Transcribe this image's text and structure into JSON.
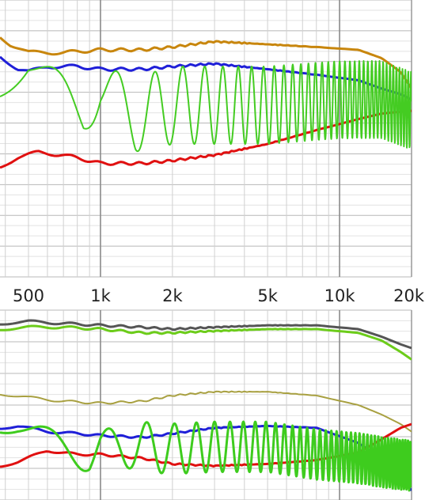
{
  "chart_data": [
    {
      "type": "line",
      "title": "",
      "xlabel": "",
      "ylabel": "",
      "xscale": "log",
      "xlim": [
        380,
        20000
      ],
      "ylim": [
        0,
        100
      ],
      "grid": true,
      "x_ticks": [
        {
          "value": 500,
          "label": "500"
        },
        {
          "value": 1000,
          "label": "1k"
        },
        {
          "value": 2000,
          "label": "2k"
        },
        {
          "value": 5000,
          "label": "5k"
        },
        {
          "value": 10000,
          "label": "10k"
        },
        {
          "value": 20000,
          "label": "20k"
        }
      ],
      "series": [
        {
          "color": "#c8860d",
          "width": 3,
          "points": [
            [
              380,
              87
            ],
            [
              420,
              84
            ],
            [
              500,
              81
            ],
            [
              700,
              81
            ],
            [
              1000,
              82
            ],
            [
              1500,
              82
            ],
            [
              2000,
              83
            ],
            [
              3000,
              85
            ],
            [
              5000,
              84
            ],
            [
              8000,
              83
            ],
            [
              12000,
              82
            ],
            [
              15000,
              79
            ],
            [
              18000,
              74
            ],
            [
              20000,
              68
            ]
          ]
        },
        {
          "color": "#1f1fd8",
          "width": 3,
          "points": [
            [
              380,
              80
            ],
            [
              450,
              75
            ],
            [
              500,
              74
            ],
            [
              600,
              76
            ],
            [
              800,
              76
            ],
            [
              1000,
              75
            ],
            [
              1500,
              75
            ],
            [
              2000,
              76
            ],
            [
              3000,
              77
            ],
            [
              5000,
              75
            ],
            [
              8000,
              73
            ],
            [
              12000,
              71
            ],
            [
              15000,
              68
            ],
            [
              18000,
              66
            ],
            [
              20000,
              64
            ]
          ]
        },
        {
          "color": "#e01010",
          "width": 3,
          "points": [
            [
              380,
              40
            ],
            [
              450,
              43
            ],
            [
              550,
              45
            ],
            [
              700,
              44
            ],
            [
              900,
              42
            ],
            [
              1000,
              41
            ],
            [
              1500,
              41
            ],
            [
              2000,
              42
            ],
            [
              3000,
              44
            ],
            [
              5000,
              48
            ],
            [
              8000,
              53
            ],
            [
              12000,
              57
            ],
            [
              15000,
              59
            ],
            [
              20000,
              60
            ]
          ]
        },
        {
          "color": "#44cc22",
          "width": 2,
          "oscillating": true,
          "points": [
            [
              380,
              70
            ],
            [
              500,
              76
            ],
            [
              850,
              60
            ],
            [
              1000,
              68
            ],
            [
              1400,
              58
            ],
            [
              2000,
              62
            ],
            [
              5000,
              62
            ],
            [
              10000,
              64
            ],
            [
              15000,
              64
            ],
            [
              20000,
              60
            ]
          ]
        }
      ]
    },
    {
      "type": "line",
      "title": "",
      "xlabel": "",
      "ylabel": "",
      "xscale": "log",
      "xlim": [
        380,
        20000
      ],
      "ylim": [
        0,
        100
      ],
      "grid": true,
      "series": [
        {
          "color": "#555555",
          "width": 3,
          "points": [
            [
              380,
              93
            ],
            [
              500,
              94
            ],
            [
              700,
              93
            ],
            [
              1000,
              92
            ],
            [
              1500,
              91
            ],
            [
              2000,
              90
            ],
            [
              3000,
              91
            ],
            [
              5000,
              92
            ],
            [
              8000,
              92
            ],
            [
              12000,
              90
            ],
            [
              15000,
              86
            ],
            [
              18000,
              82
            ],
            [
              20000,
              80
            ]
          ]
        },
        {
          "color": "#6ccc1a",
          "width": 3,
          "points": [
            [
              380,
              90
            ],
            [
              500,
              91
            ],
            [
              700,
              91
            ],
            [
              1000,
              90
            ],
            [
              1500,
              88
            ],
            [
              2000,
              88
            ],
            [
              3000,
              89
            ],
            [
              5000,
              90
            ],
            [
              8000,
              90
            ],
            [
              12000,
              88
            ],
            [
              15000,
              84
            ],
            [
              18000,
              78
            ],
            [
              20000,
              74
            ]
          ]
        },
        {
          "color": "#a8a040",
          "width": 2,
          "points": [
            [
              380,
              56
            ],
            [
              500,
              54
            ],
            [
              700,
              52
            ],
            [
              1000,
              51
            ],
            [
              1500,
              52
            ],
            [
              2000,
              55
            ],
            [
              3000,
              57
            ],
            [
              5000,
              57
            ],
            [
              8000,
              55
            ],
            [
              12000,
              50
            ],
            [
              15000,
              45
            ],
            [
              18000,
              40
            ],
            [
              20000,
              36
            ]
          ]
        },
        {
          "color": "#1f1fd8",
          "width": 3,
          "points": [
            [
              380,
              38
            ],
            [
              450,
              39
            ],
            [
              600,
              36
            ],
            [
              800,
              35
            ],
            [
              1000,
              34
            ],
            [
              1500,
              33
            ],
            [
              2000,
              35
            ],
            [
              3000,
              38
            ],
            [
              5000,
              39
            ],
            [
              8000,
              38
            ],
            [
              12000,
              30
            ],
            [
              15000,
              22
            ],
            [
              18000,
              12
            ],
            [
              20000,
              5
            ]
          ]
        },
        {
          "color": "#e01010",
          "width": 3,
          "points": [
            [
              380,
              18
            ],
            [
              450,
              20
            ],
            [
              600,
              26
            ],
            [
              800,
              24
            ],
            [
              1000,
              24
            ],
            [
              1500,
              22
            ],
            [
              2000,
              19
            ],
            [
              3000,
              18
            ],
            [
              5000,
              19
            ],
            [
              8000,
              21
            ],
            [
              12000,
              25
            ],
            [
              15000,
              32
            ],
            [
              18000,
              38
            ],
            [
              20000,
              40
            ]
          ]
        },
        {
          "color": "#3ecc1e",
          "width": 3,
          "oscillating": true,
          "points": [
            [
              380,
              40
            ],
            [
              450,
              38
            ],
            [
              550,
              34
            ],
            [
              900,
              22
            ],
            [
              1000,
              28
            ],
            [
              1500,
              28
            ],
            [
              2000,
              27
            ],
            [
              3000,
              28
            ],
            [
              5000,
              28
            ],
            [
              8000,
              24
            ],
            [
              12000,
              22
            ],
            [
              15000,
              20
            ],
            [
              20000,
              18
            ]
          ]
        }
      ]
    }
  ]
}
